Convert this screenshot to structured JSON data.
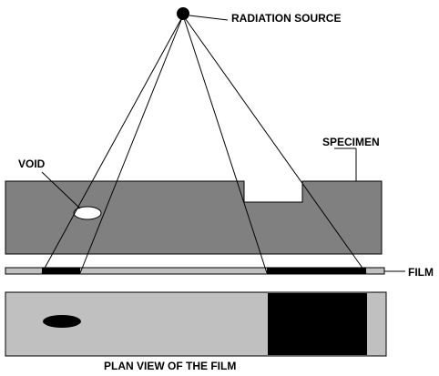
{
  "labels": {
    "radiation_source": "RADIATION SOURCE",
    "specimen": "SPECIMEN",
    "void": "VOID",
    "film": "FILM",
    "plan_view": "PLAN VIEW OF THE FILM"
  },
  "colors": {
    "specimen": "#808080",
    "film": "#c0c0c0",
    "exposed": "#000000",
    "void": "#ffffff",
    "outline": "#000000"
  }
}
